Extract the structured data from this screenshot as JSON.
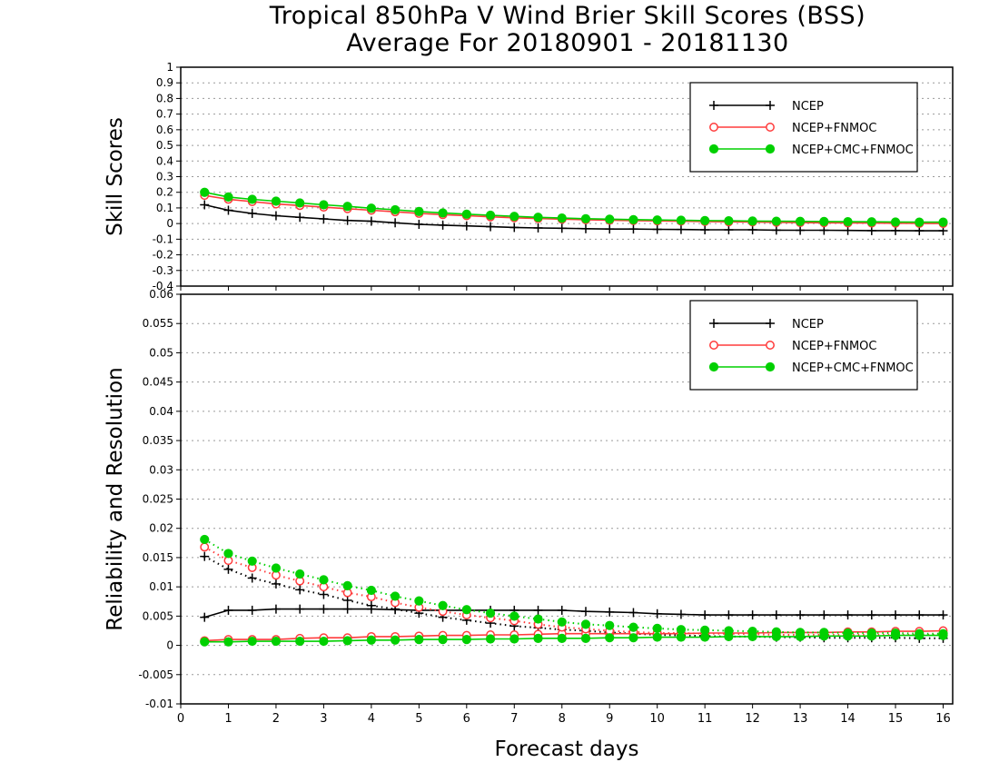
{
  "title_line1": "Tropical 850hPa V Wind Brier Skill Scores (BSS)",
  "title_line2": "Average For 20180901 - 20181130",
  "xlabel": "Forecast days",
  "colors": {
    "NCEP": "#000000",
    "NCEP+FNMOC": "#ff3b3b",
    "NCEP+CMC+FNMOC": "#00d000"
  },
  "chart_data": [
    {
      "type": "line",
      "ylabel": "Skill Scores",
      "xlim": [
        0,
        16.2
      ],
      "ylim": [
        -0.4,
        1
      ],
      "x_ticks": [
        0,
        1,
        2,
        3,
        4,
        5,
        6,
        7,
        8,
        9,
        10,
        11,
        12,
        13,
        14,
        15,
        16
      ],
      "y_ticks": [
        "-0.4",
        "-0.3",
        "-0.2",
        "-0.1",
        "0",
        "0.1",
        "0.2",
        "0.3",
        "0.4",
        "0.5",
        "0.6",
        "0.7",
        "0.8",
        "0.9",
        "1"
      ],
      "grid": true,
      "legend": "top-right",
      "x": [
        0.5,
        1,
        1.5,
        2,
        2.5,
        3,
        3.5,
        4,
        4.5,
        5,
        5.5,
        6,
        6.5,
        7,
        7.5,
        8,
        8.5,
        9,
        9.5,
        10,
        10.5,
        11,
        11.5,
        12,
        12.5,
        13,
        13.5,
        14,
        14.5,
        15,
        15.5,
        16
      ],
      "series": [
        {
          "name": "NCEP",
          "marker": "plus",
          "style": "solid",
          "values": [
            0.12,
            0.085,
            0.065,
            0.05,
            0.04,
            0.03,
            0.02,
            0.015,
            0.005,
            -0.005,
            -0.01,
            -0.015,
            -0.02,
            -0.025,
            -0.028,
            -0.03,
            -0.033,
            -0.035,
            -0.035,
            -0.037,
            -0.038,
            -0.04,
            -0.04,
            -0.04,
            -0.042,
            -0.043,
            -0.043,
            -0.044,
            -0.045,
            -0.045,
            -0.046,
            -0.046
          ]
        },
        {
          "name": "NCEP+FNMOC",
          "marker": "open-circle",
          "style": "solid",
          "values": [
            0.18,
            0.155,
            0.14,
            0.125,
            0.115,
            0.105,
            0.095,
            0.085,
            0.075,
            0.065,
            0.057,
            0.05,
            0.043,
            0.037,
            0.032,
            0.028,
            0.024,
            0.021,
            0.019,
            0.017,
            0.015,
            0.013,
            0.011,
            0.01,
            0.008,
            0.006,
            0.005,
            0.004,
            0.003,
            0.002,
            0.001,
            0.0
          ]
        },
        {
          "name": "NCEP+CMC+FNMOC",
          "marker": "filled-circle",
          "style": "solid",
          "values": [
            0.2,
            0.17,
            0.155,
            0.143,
            0.132,
            0.12,
            0.11,
            0.098,
            0.088,
            0.077,
            0.068,
            0.06,
            0.053,
            0.046,
            0.04,
            0.035,
            0.031,
            0.028,
            0.025,
            0.023,
            0.021,
            0.019,
            0.018,
            0.016,
            0.015,
            0.014,
            0.013,
            0.012,
            0.011,
            0.01,
            0.009,
            0.009
          ]
        }
      ]
    },
    {
      "type": "line",
      "ylabel": "Reliability and Resolution",
      "xlim": [
        0,
        16.2
      ],
      "ylim": [
        -0.01,
        0.06
      ],
      "x_ticks": [
        0,
        1,
        2,
        3,
        4,
        5,
        6,
        7,
        8,
        9,
        10,
        11,
        12,
        13,
        14,
        15,
        16
      ],
      "y_ticks": [
        "-0.01",
        "-0.005",
        "0",
        "0.005",
        "0.01",
        "0.015",
        "0.02",
        "0.025",
        "0.03",
        "0.035",
        "0.04",
        "0.045",
        "0.05",
        "0.055",
        "0.06"
      ],
      "grid": true,
      "legend": "top-right",
      "x": [
        0.5,
        1,
        1.5,
        2,
        2.5,
        3,
        3.5,
        4,
        4.5,
        5,
        5.5,
        6,
        6.5,
        7,
        7.5,
        8,
        8.5,
        9,
        9.5,
        10,
        10.5,
        11,
        11.5,
        12,
        12.5,
        13,
        13.5,
        14,
        14.5,
        15,
        15.5,
        16
      ],
      "series": [
        {
          "name": "NCEP",
          "role": "reliability",
          "marker": "plus",
          "style": "solid",
          "values": [
            0.0048,
            0.006,
            0.006,
            0.0062,
            0.0062,
            0.0062,
            0.0062,
            0.0062,
            0.0061,
            0.006,
            0.006,
            0.006,
            0.006,
            0.006,
            0.006,
            0.006,
            0.0058,
            0.0057,
            0.0056,
            0.0054,
            0.0053,
            0.0052,
            0.0052,
            0.0052,
            0.0052,
            0.0052,
            0.0052,
            0.0052,
            0.0052,
            0.0052,
            0.0052,
            0.0052
          ]
        },
        {
          "name": "NCEP",
          "role": "resolution",
          "marker": "plus",
          "style": "dotted",
          "values": [
            0.0152,
            0.013,
            0.0115,
            0.0105,
            0.0095,
            0.0087,
            0.0077,
            0.0068,
            0.0062,
            0.0055,
            0.0048,
            0.0043,
            0.0038,
            0.0033,
            0.003,
            0.0027,
            0.0025,
            0.0022,
            0.002,
            0.0018,
            0.0017,
            0.0016,
            0.0015,
            0.0015,
            0.0014,
            0.0014,
            0.0013,
            0.0013,
            0.0013,
            0.0013,
            0.0012,
            0.0012
          ]
        },
        {
          "name": "NCEP+FNMOC",
          "role": "reliability",
          "marker": "open-circle",
          "style": "solid",
          "values": [
            0.0008,
            0.001,
            0.001,
            0.001,
            0.0012,
            0.0013,
            0.0013,
            0.0015,
            0.0015,
            0.0016,
            0.0017,
            0.0017,
            0.0018,
            0.0018,
            0.0019,
            0.002,
            0.002,
            0.002,
            0.002,
            0.002,
            0.002,
            0.0021,
            0.0021,
            0.0021,
            0.0022,
            0.0022,
            0.0022,
            0.0023,
            0.0023,
            0.0024,
            0.0024,
            0.0025
          ]
        },
        {
          "name": "NCEP+FNMOC",
          "role": "resolution",
          "marker": "open-circle",
          "style": "dotted",
          "values": [
            0.0168,
            0.0145,
            0.0133,
            0.012,
            0.011,
            0.01,
            0.009,
            0.0083,
            0.0073,
            0.0065,
            0.0058,
            0.0052,
            0.0047,
            0.0042,
            0.0036,
            0.0031,
            0.0028,
            0.0025,
            0.0023,
            0.0021,
            0.0021,
            0.002,
            0.002,
            0.0019,
            0.0018,
            0.0018,
            0.0018,
            0.0018,
            0.0018,
            0.0018,
            0.0018,
            0.0018
          ]
        },
        {
          "name": "NCEP+CMC+FNMOC",
          "role": "reliability",
          "marker": "filled-circle",
          "style": "solid",
          "values": [
            0.0006,
            0.0006,
            0.0007,
            0.0007,
            0.0007,
            0.0007,
            0.0008,
            0.0009,
            0.0009,
            0.001,
            0.001,
            0.001,
            0.0011,
            0.0011,
            0.0012,
            0.0012,
            0.0012,
            0.0013,
            0.0013,
            0.0014,
            0.0014,
            0.0014,
            0.0015,
            0.0015,
            0.0015,
            0.0015,
            0.0016,
            0.0016,
            0.0016,
            0.0017,
            0.0017,
            0.0017
          ]
        },
        {
          "name": "NCEP+CMC+FNMOC",
          "role": "resolution",
          "marker": "filled-circle",
          "style": "dotted",
          "values": [
            0.0181,
            0.0157,
            0.0144,
            0.0132,
            0.0122,
            0.0112,
            0.0102,
            0.0094,
            0.0084,
            0.0076,
            0.0068,
            0.0061,
            0.0055,
            0.005,
            0.0045,
            0.004,
            0.0036,
            0.0034,
            0.0031,
            0.0029,
            0.0027,
            0.0026,
            0.0025,
            0.0024,
            0.0023,
            0.0022,
            0.0022,
            0.0021,
            0.0021,
            0.0021,
            0.002,
            0.002
          ]
        }
      ]
    }
  ]
}
